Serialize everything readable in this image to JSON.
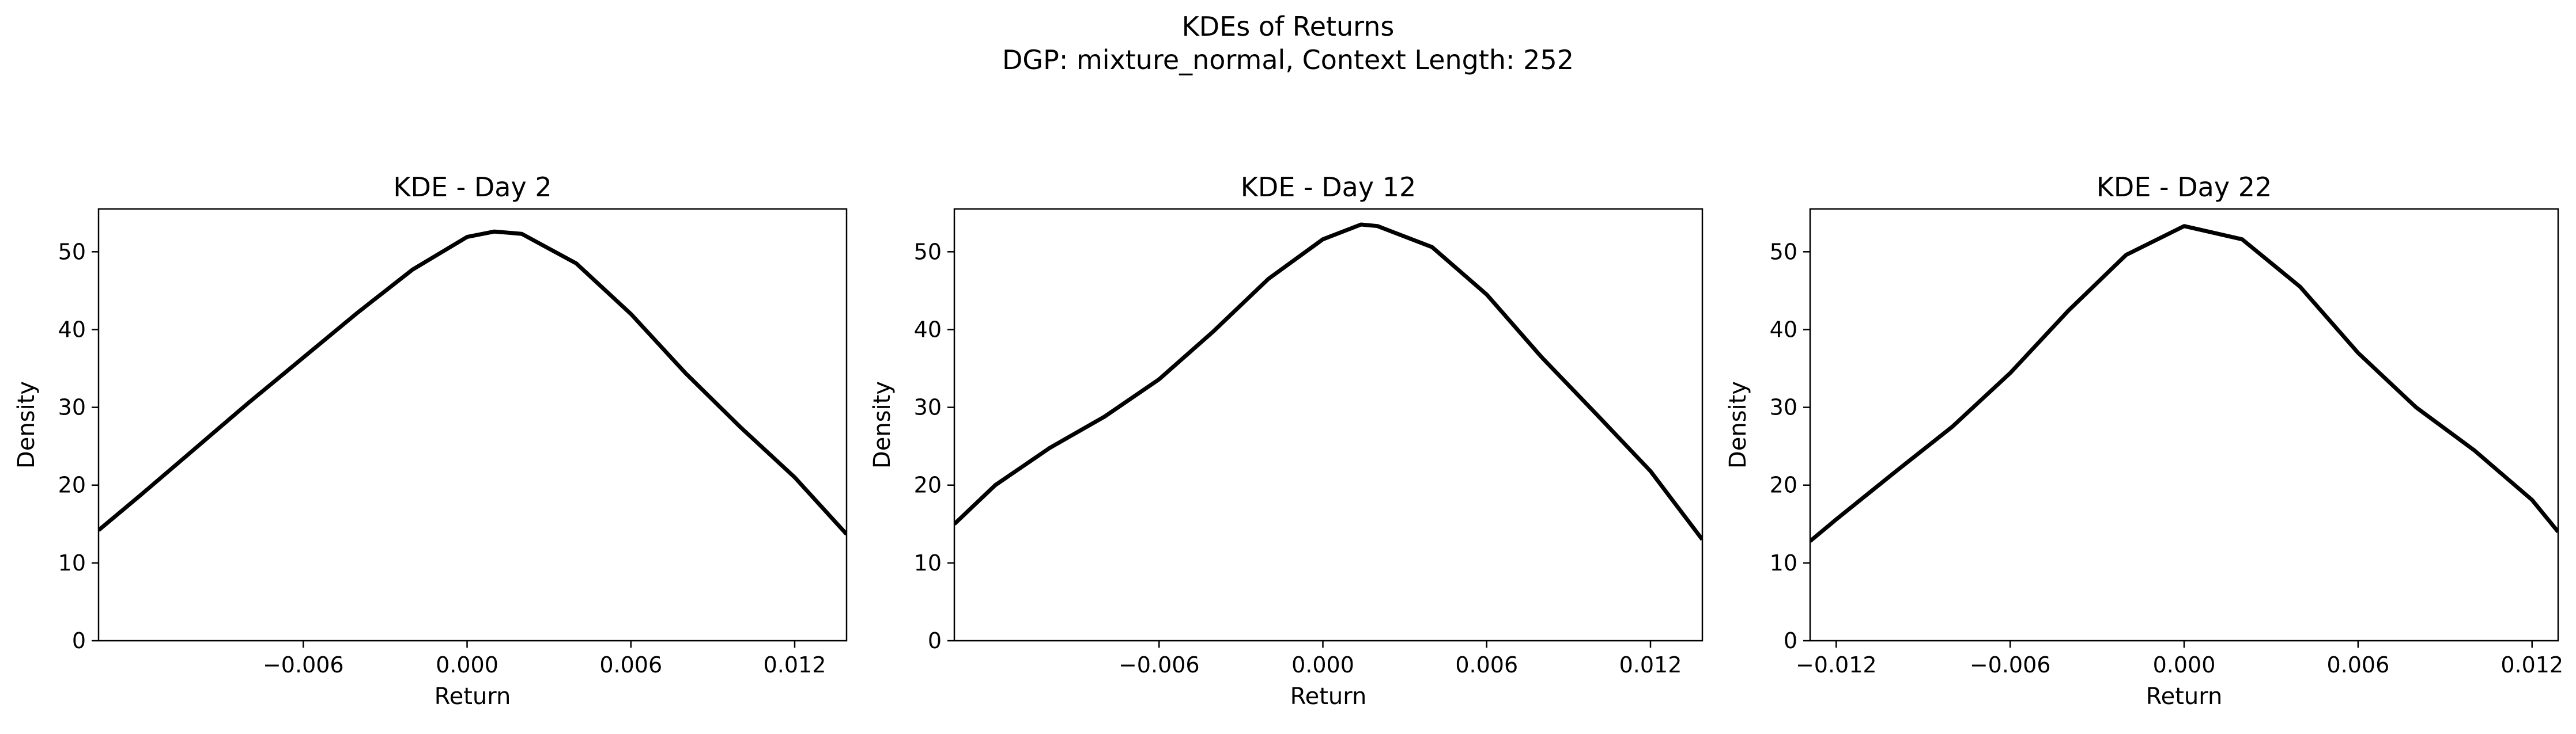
{
  "figure": {
    "title_line1": "KDEs of Returns",
    "title_line2": "DGP: mixture_normal, Context Length: 252"
  },
  "chart_data": [
    {
      "type": "line",
      "title": "KDE - Day 2",
      "xlabel": "Return",
      "ylabel": "Density",
      "xlim": [
        -0.0135,
        0.0139
      ],
      "ylim": [
        0,
        55.5
      ],
      "xticks": [
        -0.006,
        0.0,
        0.006,
        0.012
      ],
      "xtick_labels": [
        "−0.006",
        "0.000",
        "0.006",
        "0.012"
      ],
      "yticks": [
        0,
        10,
        20,
        30,
        40,
        50
      ],
      "ytick_labels": [
        "0",
        "10",
        "20",
        "30",
        "40",
        "50"
      ],
      "grid": false,
      "line_color": "#000000",
      "x": [
        -0.0135,
        -0.012,
        -0.01,
        -0.008,
        -0.006,
        -0.004,
        -0.002,
        0.0,
        0.001,
        0.002,
        0.004,
        0.006,
        0.008,
        0.01,
        0.012,
        0.0139
      ],
      "y": [
        14.2,
        18.6,
        24.6,
        30.6,
        36.4,
        42.2,
        47.7,
        51.9,
        52.6,
        52.3,
        48.5,
        42.0,
        34.4,
        27.5,
        21.0,
        13.7
      ]
    },
    {
      "type": "line",
      "title": "KDE - Day 12",
      "xlabel": "Return",
      "ylabel": "Density",
      "xlim": [
        -0.0135,
        0.0139
      ],
      "ylim": [
        0,
        55.5
      ],
      "xticks": [
        -0.006,
        0.0,
        0.006,
        0.012
      ],
      "xtick_labels": [
        "−0.006",
        "0.000",
        "0.006",
        "0.012"
      ],
      "yticks": [
        0,
        10,
        20,
        30,
        40,
        50
      ],
      "ytick_labels": [
        "0",
        "10",
        "20",
        "30",
        "40",
        "50"
      ],
      "grid": false,
      "line_color": "#000000",
      "x": [
        -0.0135,
        -0.012,
        -0.01,
        -0.008,
        -0.006,
        -0.004,
        -0.002,
        0.0,
        0.0014,
        0.002,
        0.004,
        0.006,
        0.008,
        0.01,
        0.012,
        0.0139
      ],
      "y": [
        15.0,
        20.0,
        24.8,
        28.8,
        33.6,
        39.8,
        46.5,
        51.6,
        53.5,
        53.3,
        50.6,
        44.5,
        36.5,
        29.2,
        21.8,
        13.0
      ]
    },
    {
      "type": "line",
      "title": "KDE - Day 22",
      "xlabel": "Return",
      "ylabel": "Density",
      "xlim": [
        -0.0129,
        0.0129
      ],
      "ylim": [
        0,
        55.5
      ],
      "xticks": [
        -0.012,
        -0.006,
        0.0,
        0.006,
        0.012
      ],
      "xtick_labels": [
        "−0.012",
        "−0.006",
        "0.000",
        "0.006",
        "0.012"
      ],
      "yticks": [
        0,
        10,
        20,
        30,
        40,
        50
      ],
      "ytick_labels": [
        "0",
        "10",
        "20",
        "30",
        "40",
        "50"
      ],
      "grid": false,
      "line_color": "#000000",
      "x": [
        -0.0129,
        -0.012,
        -0.01,
        -0.008,
        -0.006,
        -0.004,
        -0.002,
        0.0,
        0.002,
        0.004,
        0.006,
        0.008,
        0.01,
        0.012,
        0.0129
      ],
      "y": [
        12.8,
        15.6,
        21.6,
        27.5,
        34.4,
        42.4,
        49.6,
        53.3,
        51.6,
        45.5,
        37.0,
        30.0,
        24.5,
        18.1,
        14.0
      ]
    }
  ]
}
